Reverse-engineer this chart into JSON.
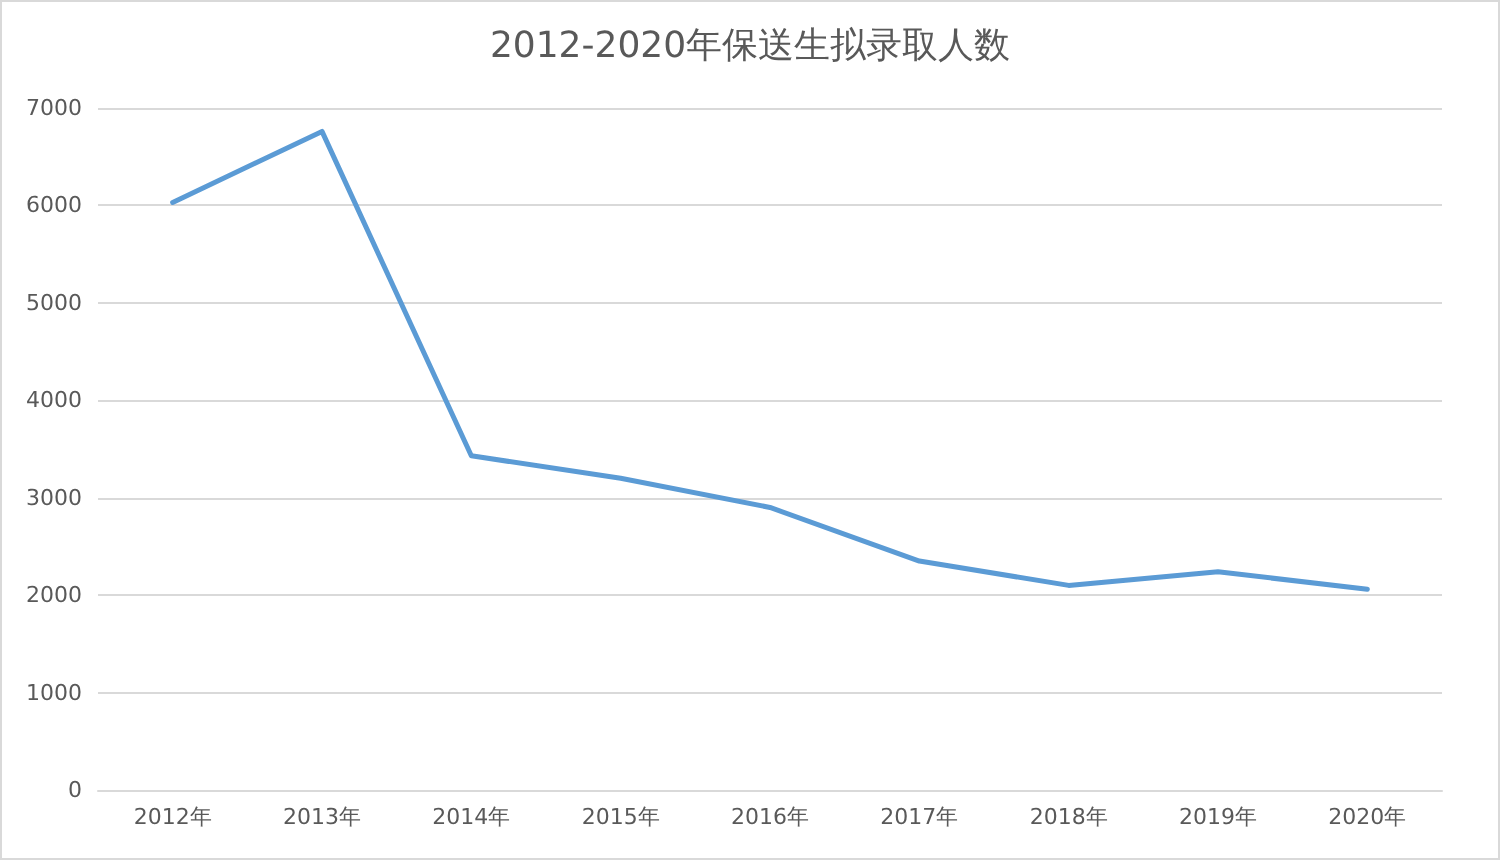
{
  "chart_data": {
    "type": "line",
    "title": "2012-2020年保送生拟录取人数",
    "categories": [
      "2012年",
      "2013年",
      "2014年",
      "2015年",
      "2016年",
      "2017年",
      "2018年",
      "2019年",
      "2020年"
    ],
    "series": [
      {
        "color": "#5b9bd5",
        "values": [
          6030,
          6760,
          3430,
          3200,
          2900,
          2350,
          2100,
          2240,
          2060
        ]
      }
    ],
    "ylim": [
      0,
      7000
    ],
    "yticks": [
      0,
      1000,
      2000,
      3000,
      4000,
      5000,
      6000,
      7000
    ],
    "grid": "y",
    "marker": "none",
    "line_style": "solid"
  }
}
